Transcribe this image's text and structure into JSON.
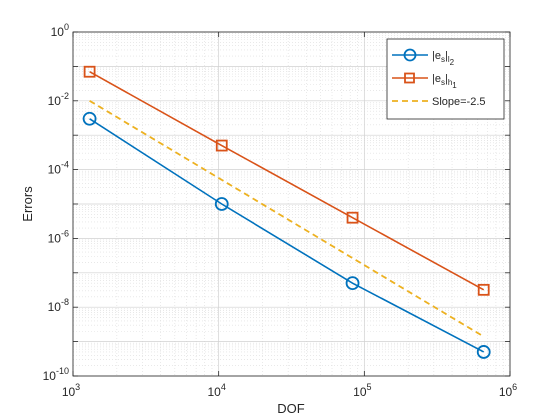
{
  "chart_data": {
    "type": "line",
    "title": "",
    "xlabel": "DOF",
    "ylabel": "Errors",
    "xscale": "log",
    "yscale": "log",
    "xlim": [
      1000,
      1000000
    ],
    "ylim": [
      1e-10,
      1
    ],
    "grid": true,
    "minor_grid": true,
    "legend_position": "top-right",
    "x_ticks": [
      {
        "base": "10",
        "exp": "3"
      },
      {
        "base": "10",
        "exp": "4"
      },
      {
        "base": "10",
        "exp": "5"
      },
      {
        "base": "10",
        "exp": "6"
      }
    ],
    "y_ticks": [
      {
        "base": "10",
        "exp": "0"
      },
      {
        "base": "10",
        "exp": "-2"
      },
      {
        "base": "10",
        "exp": "-4"
      },
      {
        "base": "10",
        "exp": "-6"
      },
      {
        "base": "10",
        "exp": "-8"
      },
      {
        "base": "10",
        "exp": "-10"
      }
    ],
    "series": [
      {
        "legend_main": "|e",
        "legend_sub1": "s",
        "legend_mid": "|",
        "legend_sub2": "l",
        "legend_sub2_sub": "2",
        "color": "#0072BD",
        "marker": "circle",
        "dash": false,
        "x": [
          1300,
          10500,
          83000,
          660000
        ],
        "y": [
          0.003,
          1e-05,
          5e-08,
          5e-10
        ]
      },
      {
        "legend_main": "|e",
        "legend_sub1": "s",
        "legend_mid": "|",
        "legend_sub2": "h",
        "legend_sub2_sub": "1",
        "color": "#D95319",
        "marker": "square",
        "dash": false,
        "x": [
          1300,
          10500,
          83000,
          660000
        ],
        "y": [
          0.07,
          0.0005,
          4e-06,
          3.2e-08
        ]
      },
      {
        "legend_main": "Slope=-2.5",
        "color": "#EDB120",
        "marker": "none",
        "dash": true,
        "x": [
          1300,
          660000
        ],
        "y": [
          0.01,
          1.4e-09
        ]
      }
    ]
  }
}
